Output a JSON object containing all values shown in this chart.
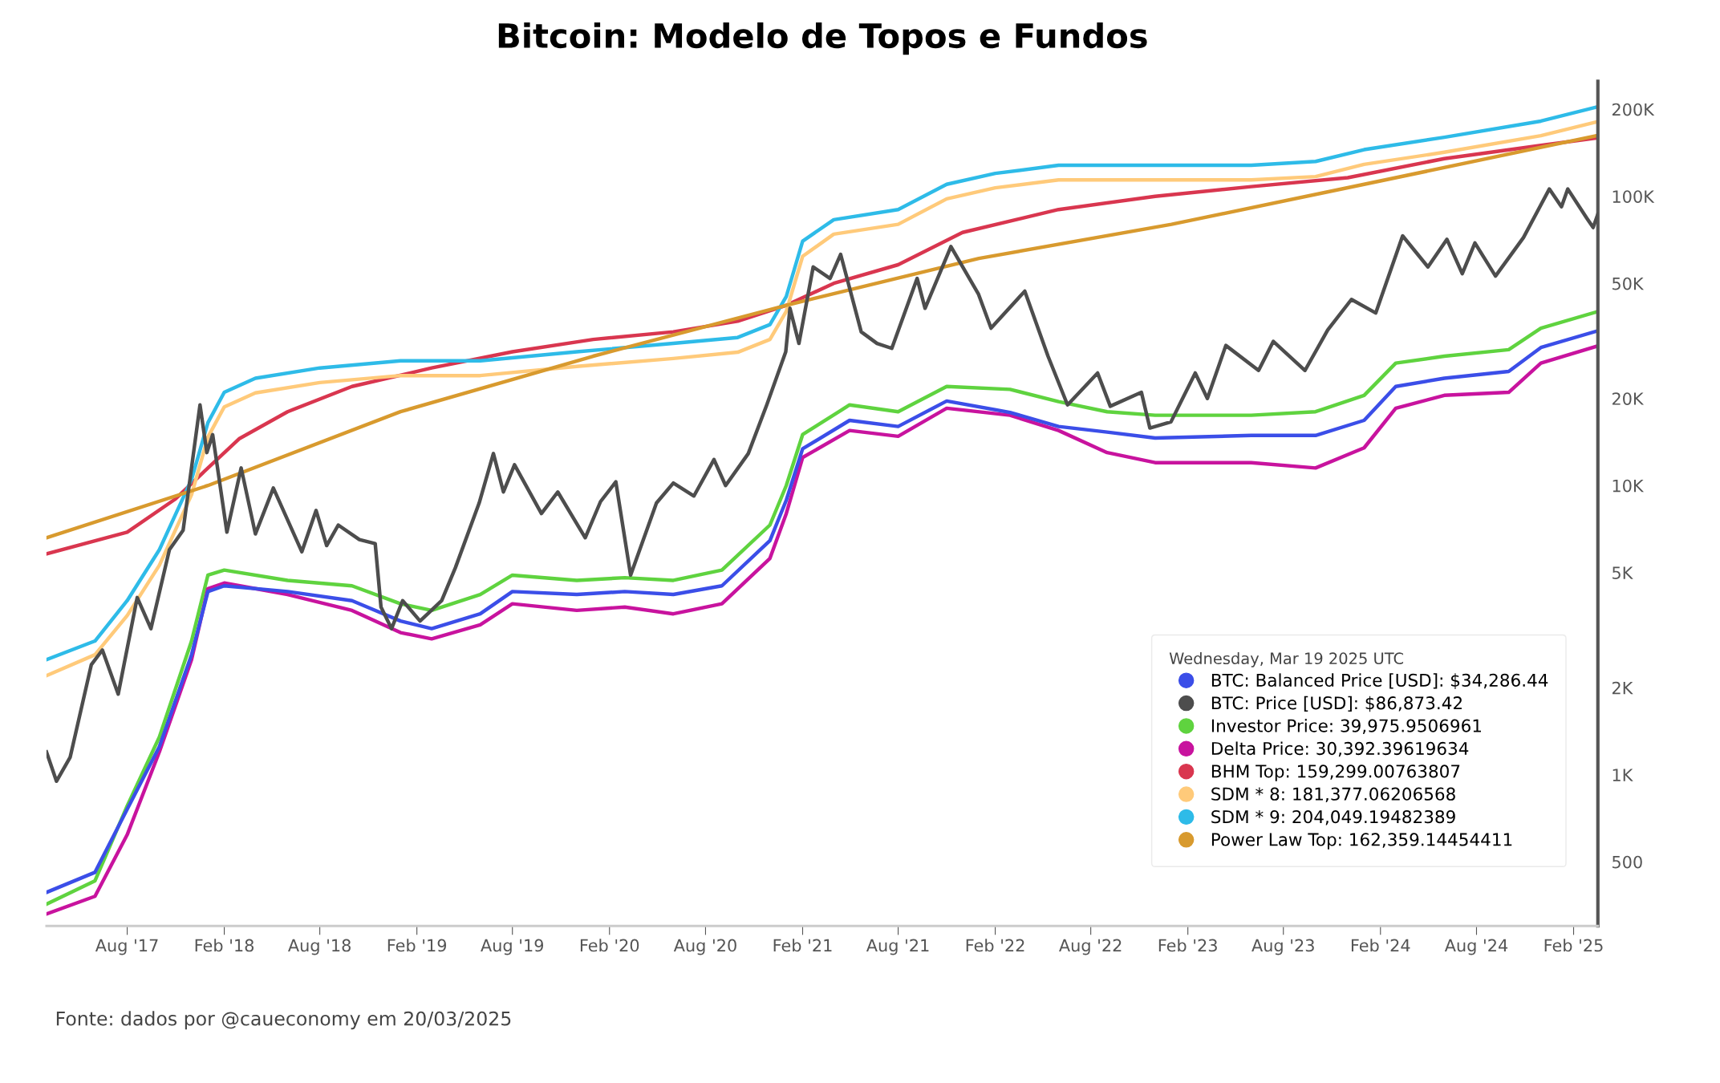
{
  "chart_data": {
    "type": "line",
    "title": "Bitcoin: Modelo de Topos e Fundos",
    "annotations": [
      "Fonte: dados por @caueconomy em 20/03/2025"
    ],
    "log": "y",
    "grid": false,
    "legend": "bottom right",
    "legend_title": "Wednesday, Mar 19 2025 UTC",
    "xlim": [
      "2017-03-01",
      "2025-03-19"
    ],
    "xticks": [
      {
        "value": "2017-08-01",
        "label": "Aug '17"
      },
      {
        "value": "2018-02-01",
        "label": "Feb '18"
      },
      {
        "value": "2018-08-01",
        "label": "Aug '18"
      },
      {
        "value": "2019-02-01",
        "label": "Feb '19"
      },
      {
        "value": "2019-08-01",
        "label": "Aug '19"
      },
      {
        "value": "2020-02-01",
        "label": "Feb '20"
      },
      {
        "value": "2020-08-01",
        "label": "Aug '20"
      },
      {
        "value": "2021-02-01",
        "label": "Feb '21"
      },
      {
        "value": "2021-08-01",
        "label": "Aug '21"
      },
      {
        "value": "2022-02-01",
        "label": "Feb '22"
      },
      {
        "value": "2022-08-01",
        "label": "Aug '22"
      },
      {
        "value": "2023-02-01",
        "label": "Feb '23"
      },
      {
        "value": "2023-08-01",
        "label": "Aug '23"
      },
      {
        "value": "2024-02-01",
        "label": "Feb '24"
      },
      {
        "value": "2024-08-01",
        "label": "Aug '24"
      },
      {
        "value": "2025-02-01",
        "label": "Feb '25"
      }
    ],
    "ylim": [
      300,
      250000
    ],
    "yticks": [
      500,
      {
        "value": 1000,
        "label": "1K"
      },
      {
        "value": 2000,
        "label": "2K"
      },
      {
        "value": 5000,
        "label": "5K"
      },
      {
        "value": 10000,
        "label": "10K"
      },
      {
        "value": 20000,
        "label": "20K"
      },
      {
        "value": 50000,
        "label": "50K"
      },
      {
        "value": 100000,
        "label": "100K"
      },
      {
        "value": 200000,
        "label": "200K"
      }
    ],
    "series": [
      {
        "name": "BTC: Balanced Price [USD]: $34,286.44",
        "color": "#3b4ee8",
        "x": [
          "2017-03-01",
          "2017-06-01",
          "2017-08-01",
          "2017-10-01",
          "2017-12-01",
          "2018-01-01",
          "2018-02-01",
          "2018-06-01",
          "2018-10-01",
          "2019-01-01",
          "2019-03-01",
          "2019-06-01",
          "2019-08-01",
          "2019-12-01",
          "2020-03-01",
          "2020-06-01",
          "2020-09-01",
          "2020-12-01",
          "2021-01-01",
          "2021-02-01",
          "2021-05-01",
          "2021-08-01",
          "2021-11-01",
          "2022-03-01",
          "2022-06-01",
          "2022-09-01",
          "2022-12-01",
          "2023-06-01",
          "2023-10-01",
          "2024-01-01",
          "2024-03-01",
          "2024-06-01",
          "2024-10-01",
          "2024-12-01",
          "2025-03-19"
        ],
        "values": [
          392,
          460,
          760,
          1250,
          2600,
          4300,
          4500,
          4300,
          4000,
          3400,
          3200,
          3600,
          4300,
          4200,
          4300,
          4200,
          4500,
          6450,
          8900,
          13400,
          16800,
          16000,
          19600,
          17900,
          16000,
          15300,
          14600,
          14900,
          14900,
          16800,
          22000,
          23500,
          24800,
          30000,
          34286.44
        ]
      },
      {
        "name": "BTC: Price [USD]: $86,873.42",
        "color": "#4d4d4d",
        "x": [
          "2017-03-01",
          "2017-03-20",
          "2017-04-15",
          "2017-05-25",
          "2017-06-15",
          "2017-07-15",
          "2017-08-20",
          "2017-09-15",
          "2017-10-20",
          "2017-11-15",
          "2017-12-17",
          "2017-12-30",
          "2018-01-10",
          "2018-02-06",
          "2018-03-05",
          "2018-04-01",
          "2018-05-05",
          "2018-06-28",
          "2018-07-25",
          "2018-08-14",
          "2018-09-05",
          "2018-10-15",
          "2018-11-14",
          "2018-11-25",
          "2018-12-15",
          "2019-01-05",
          "2019-02-07",
          "2019-03-20",
          "2019-04-15",
          "2019-05-30",
          "2019-06-26",
          "2019-07-15",
          "2019-08-05",
          "2019-09-25",
          "2019-10-26",
          "2019-12-17",
          "2020-01-15",
          "2020-02-13",
          "2020-03-12",
          "2020-04-30",
          "2020-06-01",
          "2020-07-10",
          "2020-08-17",
          "2020-09-08",
          "2020-10-21",
          "2020-11-25",
          "2020-12-31",
          "2021-01-08",
          "2021-01-25",
          "2021-02-21",
          "2021-03-25",
          "2021-04-14",
          "2021-05-23",
          "2021-06-22",
          "2021-07-20",
          "2021-09-06",
          "2021-09-21",
          "2021-11-09",
          "2021-12-31",
          "2022-01-24",
          "2022-03-29",
          "2022-05-12",
          "2022-06-18",
          "2022-08-14",
          "2022-09-07",
          "2022-11-05",
          "2022-11-21",
          "2022-12-31",
          "2023-02-15",
          "2023-03-10",
          "2023-04-14",
          "2023-06-15",
          "2023-07-13",
          "2023-09-11",
          "2023-10-24",
          "2023-12-08",
          "2024-01-23",
          "2024-03-14",
          "2024-05-01",
          "2024-06-06",
          "2024-07-05",
          "2024-07-29",
          "2024-09-06",
          "2024-10-29",
          "2024-12-17",
          "2025-01-09",
          "2025-01-21",
          "2025-02-26",
          "2025-03-10",
          "2025-03-19"
        ],
        "values": [
          1200,
          950,
          1150,
          2400,
          2700,
          1900,
          4100,
          3200,
          6000,
          7000,
          19000,
          13000,
          15000,
          6900,
          11500,
          6800,
          9800,
          5900,
          8200,
          6200,
          7300,
          6500,
          6300,
          3800,
          3200,
          4000,
          3400,
          4000,
          5200,
          8700,
          12900,
          9500,
          11800,
          8000,
          9500,
          6600,
          8800,
          10300,
          4900,
          8700,
          10200,
          9200,
          12300,
          10000,
          12900,
          19000,
          29000,
          41000,
          31000,
          57000,
          52000,
          63000,
          34000,
          31000,
          29800,
          52000,
          41000,
          67000,
          46000,
          35000,
          47000,
          28000,
          19000,
          24500,
          18800,
          21000,
          15800,
          16600,
          24500,
          20000,
          30500,
          25000,
          31500,
          25000,
          34500,
          44000,
          39500,
          73000,
          57000,
          71000,
          54000,
          69000,
          53000,
          72000,
          106000,
          92000,
          106000,
          84000,
          78000,
          86873.42
        ]
      },
      {
        "name": "Investor Price: 39,975.9506961",
        "color": "#5fd33f",
        "x": [
          "2017-03-01",
          "2017-06-01",
          "2017-08-01",
          "2017-10-01",
          "2017-12-01",
          "2018-01-01",
          "2018-02-01",
          "2018-06-01",
          "2018-10-01",
          "2019-01-01",
          "2019-03-01",
          "2019-06-01",
          "2019-08-01",
          "2019-12-01",
          "2020-03-01",
          "2020-06-01",
          "2020-09-01",
          "2020-12-01",
          "2021-01-01",
          "2021-02-01",
          "2021-05-01",
          "2021-08-01",
          "2021-11-01",
          "2022-03-01",
          "2022-06-01",
          "2022-09-01",
          "2022-12-01",
          "2023-06-01",
          "2023-10-01",
          "2024-01-01",
          "2024-03-01",
          "2024-06-01",
          "2024-10-01",
          "2024-12-01",
          "2025-03-19"
        ],
        "values": [
          357,
          430,
          780,
          1350,
          2900,
          4900,
          5100,
          4700,
          4500,
          3900,
          3700,
          4200,
          4900,
          4700,
          4800,
          4700,
          5100,
          7300,
          10000,
          15000,
          19000,
          18000,
          22000,
          21500,
          19500,
          18000,
          17500,
          17500,
          18000,
          20500,
          26500,
          28000,
          29500,
          35000,
          39975.9506961
        ]
      },
      {
        "name": "Delta Price: 30,392.39619634",
        "color": "#c8139e",
        "x": [
          "2017-03-01",
          "2017-06-01",
          "2017-08-01",
          "2017-10-01",
          "2017-12-01",
          "2018-01-01",
          "2018-02-01",
          "2018-06-01",
          "2018-10-01",
          "2019-01-01",
          "2019-03-01",
          "2019-06-01",
          "2019-08-01",
          "2019-12-01",
          "2020-03-01",
          "2020-06-01",
          "2020-09-01",
          "2020-12-01",
          "2021-01-01",
          "2021-02-01",
          "2021-05-01",
          "2021-08-01",
          "2021-11-01",
          "2022-03-01",
          "2022-06-01",
          "2022-09-01",
          "2022-12-01",
          "2023-06-01",
          "2023-10-01",
          "2024-01-01",
          "2024-03-01",
          "2024-06-01",
          "2024-10-01",
          "2024-12-01",
          "2025-03-19"
        ],
        "values": [
          330,
          380,
          620,
          1200,
          2500,
          4400,
          4600,
          4200,
          3700,
          3100,
          2950,
          3300,
          3900,
          3700,
          3800,
          3600,
          3900,
          5600,
          8000,
          12500,
          15500,
          14800,
          18500,
          17500,
          15500,
          13000,
          12000,
          12000,
          11500,
          13500,
          18500,
          20500,
          21000,
          26500,
          30392.39619634
        ]
      },
      {
        "name": "BHM Top: 159,299.00763807",
        "color": "#d9364f",
        "x": [
          "2017-03-01",
          "2017-08-01",
          "2017-11-01",
          "2018-01-01",
          "2018-03-01",
          "2018-06-01",
          "2018-10-01",
          "2019-03-01",
          "2019-08-01",
          "2020-01-01",
          "2020-06-01",
          "2020-10-01",
          "2021-01-01",
          "2021-04-01",
          "2021-08-01",
          "2021-12-01",
          "2022-06-01",
          "2022-12-01",
          "2023-06-01",
          "2023-12-01",
          "2024-06-01",
          "2024-12-01",
          "2025-03-19"
        ],
        "values": [
          5800,
          6900,
          9000,
          11500,
          14500,
          18000,
          22000,
          25500,
          29000,
          32000,
          34000,
          37000,
          42000,
          50000,
          58000,
          75000,
          90000,
          100000,
          108000,
          116000,
          135000,
          150000,
          159299.00763807
        ]
      },
      {
        "name": "SDM * 8: 181,377.06206568",
        "color": "#ffca7a",
        "x": [
          "2017-03-01",
          "2017-06-01",
          "2017-08-01",
          "2017-10-01",
          "2017-12-01",
          "2018-01-01",
          "2018-02-01",
          "2018-04-01",
          "2018-08-01",
          "2019-01-01",
          "2019-06-01",
          "2019-12-01",
          "2020-06-01",
          "2020-10-01",
          "2020-12-01",
          "2021-01-01",
          "2021-02-01",
          "2021-04-01",
          "2021-08-01",
          "2021-11-01",
          "2022-02-01",
          "2022-06-01",
          "2023-01-01",
          "2023-06-01",
          "2023-10-01",
          "2024-01-01",
          "2024-06-01",
          "2024-12-01",
          "2025-03-19"
        ],
        "values": [
          2200,
          2600,
          3550,
          5300,
          9300,
          14700,
          18700,
          20900,
          22700,
          24000,
          24000,
          25800,
          27500,
          28900,
          32000,
          40000,
          62000,
          74000,
          80000,
          98000,
          107000,
          114000,
          114000,
          114000,
          117000,
          129000,
          142000,
          162000,
          181377.06206568
        ]
      },
      {
        "name": "SDM * 9: 204,049.19482389",
        "color": "#2ebbe8",
        "x": [
          "2017-03-01",
          "2017-06-01",
          "2017-08-01",
          "2017-10-01",
          "2017-12-01",
          "2018-01-01",
          "2018-02-01",
          "2018-04-01",
          "2018-08-01",
          "2019-01-01",
          "2019-06-01",
          "2019-12-01",
          "2020-06-01",
          "2020-10-01",
          "2020-12-01",
          "2021-01-01",
          "2021-02-01",
          "2021-04-01",
          "2021-08-01",
          "2021-11-01",
          "2022-02-01",
          "2022-06-01",
          "2023-01-01",
          "2023-06-01",
          "2023-10-01",
          "2024-01-01",
          "2024-06-01",
          "2024-12-01",
          "2025-03-19"
        ],
        "values": [
          2500,
          2900,
          4000,
          6000,
          10500,
          16500,
          21000,
          23500,
          25500,
          27000,
          27000,
          29000,
          31000,
          32500,
          36000,
          45000,
          70000,
          83000,
          90000,
          110000,
          120000,
          128000,
          128000,
          128000,
          132000,
          145000,
          160000,
          182000,
          204049.19482389
        ]
      },
      {
        "name": "Power Law Top: 162,359.14454411",
        "color": "#d89a2e",
        "x": [
          "2017-03-01",
          "2018-01-01",
          "2019-01-01",
          "2020-01-01",
          "2021-01-01",
          "2022-01-01",
          "2023-01-01",
          "2024-01-01",
          "2025-03-19"
        ],
        "values": [
          6600,
          10000,
          18000,
          28000,
          42000,
          61000,
          80000,
          110000,
          162359.14454411
        ]
      }
    ]
  }
}
